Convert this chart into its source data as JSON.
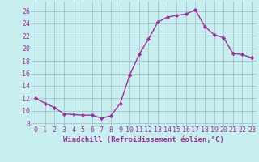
{
  "x": [
    0,
    1,
    2,
    3,
    4,
    5,
    6,
    7,
    8,
    9,
    10,
    11,
    12,
    13,
    14,
    15,
    16,
    17,
    18,
    19,
    20,
    21,
    22,
    23
  ],
  "y": [
    12.0,
    11.2,
    10.5,
    9.5,
    9.4,
    9.3,
    9.3,
    8.8,
    9.2,
    11.2,
    15.7,
    19.0,
    21.5,
    24.2,
    25.0,
    25.3,
    25.5,
    26.2,
    23.5,
    22.2,
    21.7,
    19.2,
    19.0,
    18.5
  ],
  "line_color": "#993399",
  "marker": "D",
  "markersize": 2.2,
  "linewidth": 1.0,
  "bg_color": "#c8eef0",
  "grid_color": "#a0b8c8",
  "xlabel": "Windchill (Refroidissement éolien,°C)",
  "xlabel_fontsize": 6.5,
  "ylabel_ticks": [
    8,
    10,
    12,
    14,
    16,
    18,
    20,
    22,
    24,
    26
  ],
  "xtick_labels": [
    "0",
    "1",
    "2",
    "3",
    "4",
    "5",
    "6",
    "7",
    "8",
    "9",
    "10",
    "11",
    "12",
    "13",
    "14",
    "15",
    "16",
    "17",
    "18",
    "19",
    "20",
    "21",
    "22",
    "23"
  ],
  "xlim": [
    -0.5,
    23.5
  ],
  "ylim": [
    7.5,
    27.5
  ],
  "tick_color": "#993399",
  "tick_fontsize": 6.0
}
